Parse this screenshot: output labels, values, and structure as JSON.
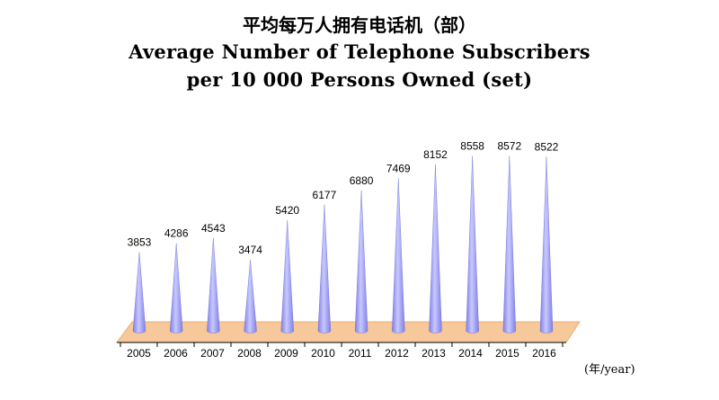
{
  "title_zh": "平均每万人拥有电话机（部）",
  "title_en_line1": "Average Number of Telephone Subscribers",
  "title_en_line2": "per 10 000 Persons Owned (set)",
  "unit_label": "(年/year)",
  "colors": {
    "cone": "#8080e8",
    "cone_light": "#c8c8ff",
    "base": "#f7c89a",
    "base_edge": "#e8b07a",
    "axis": "#000000"
  },
  "chart_data": {
    "type": "bar",
    "categories": [
      "2005",
      "2006",
      "2007",
      "2008",
      "2009",
      "2010",
      "2011",
      "2012",
      "2013",
      "2014",
      "2015",
      "2016"
    ],
    "values": [
      3853,
      4286,
      4543,
      3474,
      5420,
      6177,
      6880,
      7469,
      8152,
      8558,
      8572,
      8522
    ],
    "title": "Average Number of Telephone Subscribers per 10 000 Persons Owned (set)",
    "xlabel": "(年/year)",
    "ylabel": "",
    "shape": "cone",
    "grid": false
  }
}
